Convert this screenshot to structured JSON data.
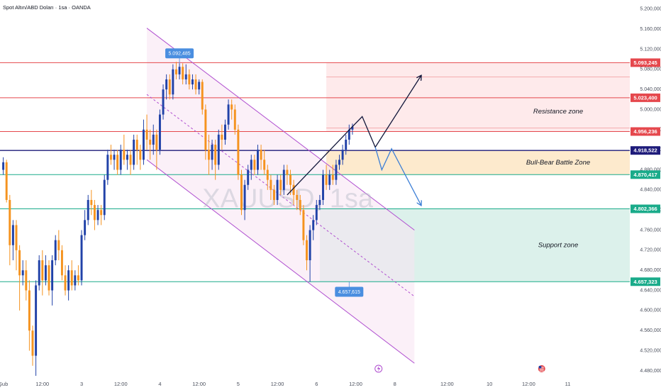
{
  "header": {
    "title": "Spot Altın/ABD Doları · 1sa · OANDA"
  },
  "watermark": "XAUUSD, 1sa",
  "colors": {
    "up": "#2142a8",
    "down": "#f5931f",
    "resistance_line": "#e5484d",
    "support_line": "#1aab8a",
    "battle_line": "#1e1b7a",
    "channel": "#b04fd0",
    "label_red": "#e5484d",
    "label_navy": "#1e1b7a",
    "label_green": "#1aab8a",
    "label_blue": "#4a8ee0",
    "arrow_black": "#11163a",
    "arrow_blue": "#3d7fd6"
  },
  "icons": {
    "event_flash": "lightning-icon",
    "event_us": "us-flag-icon"
  },
  "chart_data": {
    "type": "candlestick",
    "title": "Spot Altın/ABD Doları · 1sa · OANDA",
    "y_axis": {
      "ticks": [
        "5.200,000",
        "5.160,000",
        "5.120,000",
        "5.080,000",
        "5.040,000",
        "5.000,000",
        "4.960,000",
        "4.920,000",
        "4.880,000",
        "4.840,000",
        "4.800,000",
        "4.760,000",
        "4.720,000",
        "4.680,000",
        "4.640,000",
        "4.600,000",
        "4.560,000",
        "4.520,000",
        "4.480,000"
      ],
      "tick_values": [
        5200,
        5160,
        5120,
        5080,
        5040,
        5000,
        4960,
        4920,
        4880,
        4840,
        4800,
        4760,
        4720,
        4680,
        4640,
        4600,
        4560,
        4520,
        4480
      ],
      "range": [
        4470,
        5218
      ]
    },
    "x_axis": {
      "ticks": [
        "Şub",
        "12:00",
        "3",
        "12:00",
        "4",
        "12:00",
        "5",
        "12:00",
        "6",
        "12:00",
        "8",
        "12:00",
        "10",
        "12:00",
        "11"
      ],
      "tick_index": [
        0,
        12,
        24,
        36,
        48,
        60,
        72,
        84,
        96,
        108,
        120,
        136,
        149,
        161,
        173
      ],
      "range_index": [
        -1,
        192
      ]
    },
    "price_levels": [
      {
        "value": 5093.245,
        "label": "5.093,245",
        "kind": "resistance"
      },
      {
        "value": 5023.4,
        "label": "5.023,400",
        "kind": "resistance"
      },
      {
        "value": 4956.236,
        "label": "4.956,236",
        "kind": "resistance"
      },
      {
        "value": 4918.522,
        "label": "4.918,522",
        "kind": "battle"
      },
      {
        "value": 4870.417,
        "label": "4.870,417",
        "kind": "support"
      },
      {
        "value": 4802.366,
        "label": "4.802,366",
        "kind": "support"
      },
      {
        "value": 4657.323,
        "label": "4.657,323",
        "kind": "support"
      }
    ],
    "annotations": {
      "resistance_zone": "Resistance zone",
      "battle_zone": "Bull-Bear Battle Zone",
      "support_zone": "Support zone",
      "high_marker": "5.092,485",
      "low_marker": "4.657,615"
    },
    "candles": [
      {
        "o": 4880,
        "c": 4895,
        "h": 4905,
        "l": 4870
      },
      {
        "o": 4895,
        "c": 4820,
        "h": 4900,
        "l": 4815
      },
      {
        "o": 4820,
        "c": 4730,
        "h": 4830,
        "l": 4690
      },
      {
        "o": 4730,
        "c": 4770,
        "h": 4780,
        "l": 4700
      },
      {
        "o": 4770,
        "c": 4720,
        "h": 4780,
        "l": 4680
      },
      {
        "o": 4720,
        "c": 4670,
        "h": 4730,
        "l": 4600
      },
      {
        "o": 4670,
        "c": 4680,
        "h": 4700,
        "l": 4650
      },
      {
        "o": 4680,
        "c": 4640,
        "h": 4700,
        "l": 4620
      },
      {
        "o": 4640,
        "c": 4560,
        "h": 4660,
        "l": 4520
      },
      {
        "o": 4560,
        "c": 4510,
        "h": 4570,
        "l": 4490
      },
      {
        "o": 4510,
        "c": 4650,
        "h": 4660,
        "l": 4470
      },
      {
        "o": 4650,
        "c": 4700,
        "h": 4710,
        "l": 4640
      },
      {
        "o": 4700,
        "c": 4660,
        "h": 4720,
        "l": 4630
      },
      {
        "o": 4660,
        "c": 4690,
        "h": 4710,
        "l": 4650
      },
      {
        "o": 4690,
        "c": 4640,
        "h": 4700,
        "l": 4630
      },
      {
        "o": 4640,
        "c": 4700,
        "h": 4710,
        "l": 4610
      },
      {
        "o": 4700,
        "c": 4740,
        "h": 4750,
        "l": 4690
      },
      {
        "o": 4740,
        "c": 4720,
        "h": 4760,
        "l": 4700
      },
      {
        "o": 4720,
        "c": 4670,
        "h": 4730,
        "l": 4660
      },
      {
        "o": 4670,
        "c": 4640,
        "h": 4690,
        "l": 4630
      },
      {
        "o": 4640,
        "c": 4680,
        "h": 4690,
        "l": 4620
      },
      {
        "o": 4680,
        "c": 4650,
        "h": 4700,
        "l": 4640
      },
      {
        "o": 4650,
        "c": 4670,
        "h": 4680,
        "l": 4640
      },
      {
        "o": 4670,
        "c": 4660,
        "h": 4690,
        "l": 4650
      },
      {
        "o": 4660,
        "c": 4750,
        "h": 4760,
        "l": 4650
      },
      {
        "o": 4750,
        "c": 4780,
        "h": 4800,
        "l": 4740
      },
      {
        "o": 4780,
        "c": 4820,
        "h": 4830,
        "l": 4770
      },
      {
        "o": 4820,
        "c": 4810,
        "h": 4840,
        "l": 4790
      },
      {
        "o": 4810,
        "c": 4780,
        "h": 4820,
        "l": 4760
      },
      {
        "o": 4780,
        "c": 4800,
        "h": 4810,
        "l": 4770
      },
      {
        "o": 4800,
        "c": 4790,
        "h": 4810,
        "l": 4770
      },
      {
        "o": 4790,
        "c": 4860,
        "h": 4870,
        "l": 4780
      },
      {
        "o": 4860,
        "c": 4910,
        "h": 4920,
        "l": 4850
      },
      {
        "o": 4910,
        "c": 4900,
        "h": 4930,
        "l": 4890
      },
      {
        "o": 4900,
        "c": 4910,
        "h": 4920,
        "l": 4880
      },
      {
        "o": 4910,
        "c": 4880,
        "h": 4920,
        "l": 4870
      },
      {
        "o": 4880,
        "c": 4920,
        "h": 4930,
        "l": 4870
      },
      {
        "o": 4920,
        "c": 4900,
        "h": 4950,
        "l": 4890
      },
      {
        "o": 4900,
        "c": 4910,
        "h": 4920,
        "l": 4880
      },
      {
        "o": 4910,
        "c": 4890,
        "h": 4920,
        "l": 4870
      },
      {
        "o": 4890,
        "c": 4940,
        "h": 4950,
        "l": 4880
      },
      {
        "o": 4940,
        "c": 4920,
        "h": 4950,
        "l": 4890
      },
      {
        "o": 4920,
        "c": 4900,
        "h": 4930,
        "l": 4880
      },
      {
        "o": 4900,
        "c": 4960,
        "h": 4980,
        "l": 4890
      },
      {
        "o": 4960,
        "c": 4940,
        "h": 4990,
        "l": 4920
      },
      {
        "o": 4940,
        "c": 4930,
        "h": 4960,
        "l": 4900
      },
      {
        "o": 4930,
        "c": 4950,
        "h": 4970,
        "l": 4910
      },
      {
        "o": 4950,
        "c": 4920,
        "h": 4960,
        "l": 4880
      },
      {
        "o": 4920,
        "c": 4990,
        "h": 5000,
        "l": 4910
      },
      {
        "o": 4990,
        "c": 5040,
        "h": 5050,
        "l": 4980
      },
      {
        "o": 5040,
        "c": 5060,
        "h": 5070,
        "l": 5020
      },
      {
        "o": 5060,
        "c": 5030,
        "h": 5070,
        "l": 5020
      },
      {
        "o": 5030,
        "c": 5080,
        "h": 5090,
        "l": 5020
      },
      {
        "o": 5080,
        "c": 5070,
        "h": 5095,
        "l": 5060
      },
      {
        "o": 5070,
        "c": 5085,
        "h": 5092,
        "l": 5060
      },
      {
        "o": 5085,
        "c": 5060,
        "h": 5092,
        "l": 5050
      },
      {
        "o": 5060,
        "c": 5070,
        "h": 5090,
        "l": 5050
      },
      {
        "o": 5070,
        "c": 5050,
        "h": 5080,
        "l": 5040
      },
      {
        "o": 5050,
        "c": 5060,
        "h": 5070,
        "l": 5040
      },
      {
        "o": 5060,
        "c": 5040,
        "h": 5070,
        "l": 5030
      },
      {
        "o": 5040,
        "c": 5055,
        "h": 5060,
        "l": 5030
      },
      {
        "o": 5055,
        "c": 5000,
        "h": 5060,
        "l": 4990
      },
      {
        "o": 5000,
        "c": 4920,
        "h": 5010,
        "l": 4900
      },
      {
        "o": 4920,
        "c": 4900,
        "h": 4950,
        "l": 4870
      },
      {
        "o": 4900,
        "c": 4930,
        "h": 4940,
        "l": 4880
      },
      {
        "o": 4930,
        "c": 4890,
        "h": 4940,
        "l": 4860
      },
      {
        "o": 4890,
        "c": 4950,
        "h": 4960,
        "l": 4880
      },
      {
        "o": 4950,
        "c": 4940,
        "h": 4970,
        "l": 4920
      },
      {
        "o": 4940,
        "c": 4970,
        "h": 4980,
        "l": 4930
      },
      {
        "o": 4970,
        "c": 5010,
        "h": 5020,
        "l": 4960
      },
      {
        "o": 5010,
        "c": 5000,
        "h": 5020,
        "l": 4980
      },
      {
        "o": 5000,
        "c": 4960,
        "h": 5010,
        "l": 4950
      },
      {
        "o": 4960,
        "c": 4870,
        "h": 4970,
        "l": 4860
      },
      {
        "o": 4870,
        "c": 4800,
        "h": 4880,
        "l": 4790
      },
      {
        "o": 4800,
        "c": 4850,
        "h": 4860,
        "l": 4780
      },
      {
        "o": 4850,
        "c": 4880,
        "h": 4890,
        "l": 4840
      },
      {
        "o": 4880,
        "c": 4900,
        "h": 4910,
        "l": 4860
      },
      {
        "o": 4900,
        "c": 4880,
        "h": 4910,
        "l": 4870
      },
      {
        "o": 4880,
        "c": 4920,
        "h": 4930,
        "l": 4870
      },
      {
        "o": 4920,
        "c": 4900,
        "h": 4930,
        "l": 4880
      },
      {
        "o": 4900,
        "c": 4880,
        "h": 4920,
        "l": 4870
      },
      {
        "o": 4880,
        "c": 4860,
        "h": 4890,
        "l": 4840
      },
      {
        "o": 4860,
        "c": 4840,
        "h": 4870,
        "l": 4820
      },
      {
        "o": 4840,
        "c": 4820,
        "h": 4850,
        "l": 4810
      },
      {
        "o": 4820,
        "c": 4860,
        "h": 4870,
        "l": 4810
      },
      {
        "o": 4860,
        "c": 4840,
        "h": 4870,
        "l": 4830
      },
      {
        "o": 4840,
        "c": 4880,
        "h": 4890,
        "l": 4830
      },
      {
        "o": 4880,
        "c": 4870,
        "h": 4890,
        "l": 4850
      },
      {
        "o": 4870,
        "c": 4850,
        "h": 4880,
        "l": 4830
      },
      {
        "o": 4850,
        "c": 4830,
        "h": 4860,
        "l": 4810
      },
      {
        "o": 4830,
        "c": 4820,
        "h": 4840,
        "l": 4800
      },
      {
        "o": 4820,
        "c": 4800,
        "h": 4830,
        "l": 4790
      },
      {
        "o": 4800,
        "c": 4740,
        "h": 4810,
        "l": 4730
      },
      {
        "o": 4740,
        "c": 4700,
        "h": 4750,
        "l": 4680
      },
      {
        "o": 4700,
        "c": 4760,
        "h": 4770,
        "l": 4657
      },
      {
        "o": 4760,
        "c": 4780,
        "h": 4790,
        "l": 4740
      },
      {
        "o": 4780,
        "c": 4810,
        "h": 4820,
        "l": 4770
      },
      {
        "o": 4810,
        "c": 4820,
        "h": 4830,
        "l": 4800
      },
      {
        "o": 4820,
        "c": 4870,
        "h": 4880,
        "l": 4810
      },
      {
        "o": 4870,
        "c": 4850,
        "h": 4890,
        "l": 4840
      },
      {
        "o": 4850,
        "c": 4870,
        "h": 4880,
        "l": 4840
      },
      {
        "o": 4870,
        "c": 4860,
        "h": 4890,
        "l": 4850
      },
      {
        "o": 4860,
        "c": 4890,
        "h": 4900,
        "l": 4850
      },
      {
        "o": 4890,
        "c": 4900,
        "h": 4910,
        "l": 4880
      },
      {
        "o": 4900,
        "c": 4920,
        "h": 4930,
        "l": 4890
      },
      {
        "o": 4920,
        "c": 4940,
        "h": 4950,
        "l": 4910
      },
      {
        "o": 4940,
        "c": 4960,
        "h": 4970,
        "l": 4930
      },
      {
        "o": 4960,
        "c": 4966,
        "h": 4972,
        "l": 4950
      }
    ]
  }
}
